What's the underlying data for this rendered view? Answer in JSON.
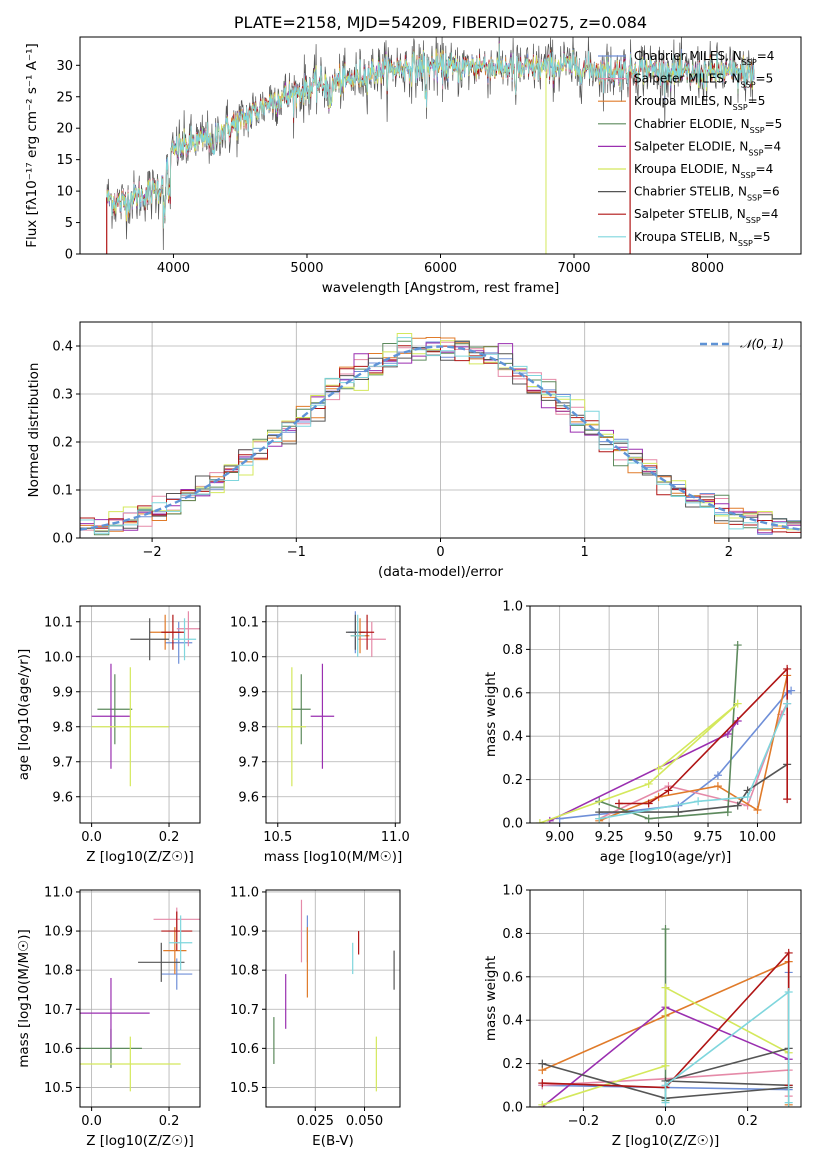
{
  "colors": {
    "Chabrier MILES": "#6f8fd8",
    "Salpeter MILES": "#e58aa8",
    "Kroupa MILES": "#e07b2a",
    "Chabrier ELODIE": "#5d8a5d",
    "Salpeter ELODIE": "#9a2fb0",
    "Kroupa ELODIE": "#d4e85c",
    "Chabrier STELIB": "#555555",
    "Salpeter STELIB": "#b01515",
    "Kroupa STELIB": "#7fd6dd",
    "normal": "#5f93d6"
  },
  "chart_data": [
    {
      "id": "spectrum",
      "type": "line",
      "title": "PLATE=2158, MJD=54209, FIBERID=0275, z=0.084",
      "xlabel": "wavelength [Angstrom, rest frame]",
      "ylabel": "Flux [fλ10⁻¹⁷ erg cm⁻² s⁻¹ A⁻¹]",
      "xlim": [
        3300,
        8700
      ],
      "ylim": [
        0,
        34.5
      ],
      "xticks": [
        4000,
        5000,
        6000,
        7000,
        8000
      ],
      "yticks": [
        0,
        5,
        10,
        15,
        20,
        25,
        30
      ],
      "grid": false,
      "legend_position": "top-right",
      "continuum": [
        [
          3500,
          9
        ],
        [
          3600,
          8
        ],
        [
          3700,
          9
        ],
        [
          3800,
          9.5
        ],
        [
          3900,
          10.5
        ],
        [
          3950,
          14
        ],
        [
          4000,
          16.5
        ],
        [
          4200,
          18
        ],
        [
          4300,
          19
        ],
        [
          4500,
          21
        ],
        [
          4700,
          24
        ],
        [
          4900,
          25.5
        ],
        [
          5100,
          27
        ],
        [
          5300,
          27.5
        ],
        [
          5500,
          29
        ],
        [
          5700,
          29.5
        ],
        [
          5900,
          30
        ],
        [
          6100,
          29.5
        ],
        [
          6300,
          30
        ],
        [
          6500,
          29.5
        ],
        [
          6700,
          29.5
        ],
        [
          6900,
          30
        ],
        [
          7100,
          29.5
        ],
        [
          7300,
          29
        ],
        [
          7500,
          29.5
        ],
        [
          7700,
          29
        ],
        [
          7900,
          28.5
        ],
        [
          8100,
          29
        ],
        [
          8350,
          28.5
        ]
      ],
      "legend": [
        "Chabrier MILES, N_SSP=4",
        "Salpeter MILES, N_SSP=5",
        "Kroupa MILES, N_SSP=5",
        "Chabrier ELODIE, N_SSP=5",
        "Salpeter ELODIE, N_SSP=4",
        "Kroupa ELODIE, N_SSP=4",
        "Chabrier STELIB, N_SSP=6",
        "Salpeter STELIB, N_SSP=4",
        "Kroupa STELIB, N_SSP=5"
      ]
    },
    {
      "id": "residuals",
      "type": "histogram",
      "xlabel": "(data-model)/error",
      "ylabel": "Normed distribution",
      "xlim": [
        -2.5,
        2.5
      ],
      "ylim": [
        0,
        0.45
      ],
      "xticks": [
        -2,
        -1,
        0,
        1,
        2
      ],
      "yticks": [
        0.0,
        0.1,
        0.2,
        0.3,
        0.4
      ],
      "grid": true,
      "legend": [
        "𝒩(0, 1)"
      ],
      "legend_position": "top-right",
      "bin_width": 0.1
    },
    {
      "id": "age_vs_Z",
      "type": "errorbar",
      "xlabel": "Z [log10(Z/Z☉)]",
      "ylabel": "age  [log10(age/yr)]",
      "xlim": [
        -0.03,
        0.28
      ],
      "ylim": [
        9.525,
        10.145
      ],
      "xticks": [
        0.0,
        0.2
      ],
      "yticks": [
        9.6,
        9.7,
        9.8,
        9.9,
        10.0,
        10.1
      ],
      "points": [
        {
          "s": "Chabrier MILES",
          "x": 0.225,
          "y": 10.04,
          "xe": 0.035,
          "ye": 0.06
        },
        {
          "s": "Salpeter MILES",
          "x": 0.25,
          "y": 10.08,
          "xe": 0.03,
          "ye": 0.05
        },
        {
          "s": "Kroupa MILES",
          "x": 0.19,
          "y": 10.07,
          "xe": 0.04,
          "ye": 0.05
        },
        {
          "s": "Chabrier ELODIE",
          "x": 0.06,
          "y": 9.85,
          "xe": 0.045,
          "ye": 0.1
        },
        {
          "s": "Salpeter ELODIE",
          "x": 0.05,
          "y": 9.83,
          "xe": 0.05,
          "ye": 0.15
        },
        {
          "s": "Kroupa ELODIE",
          "x": 0.1,
          "y": 9.8,
          "xe": 0.1,
          "ye": 0.17
        },
        {
          "s": "Chabrier STELIB",
          "x": 0.15,
          "y": 10.05,
          "xe": 0.05,
          "ye": 0.06
        },
        {
          "s": "Salpeter STELIB",
          "x": 0.21,
          "y": 10.07,
          "xe": 0.03,
          "ye": 0.05
        },
        {
          "s": "Kroupa STELIB",
          "x": 0.24,
          "y": 10.05,
          "xe": 0.03,
          "ye": 0.06
        }
      ]
    },
    {
      "id": "age_vs_mass",
      "type": "errorbar",
      "xlabel": "mass [log10(M/M☉)]",
      "ylabel": "",
      "xlim": [
        10.45,
        11.02
      ],
      "ylim": [
        9.525,
        10.145
      ],
      "xticks": [
        10.5,
        11.0
      ],
      "yticks": [
        9.6,
        9.7,
        9.8,
        9.9,
        10.0,
        10.1
      ],
      "points": [
        {
          "s": "Chabrier MILES",
          "x": 10.83,
          "y": 10.07,
          "xe": 0.03,
          "ye": 0.06
        },
        {
          "s": "Salpeter MILES",
          "x": 10.9,
          "y": 10.05,
          "xe": 0.06,
          "ye": 0.05
        },
        {
          "s": "Kroupa MILES",
          "x": 10.85,
          "y": 10.06,
          "xe": 0.04,
          "ye": 0.05
        },
        {
          "s": "Chabrier ELODIE",
          "x": 10.6,
          "y": 9.85,
          "xe": 0.04,
          "ye": 0.1
        },
        {
          "s": "Salpeter ELODIE",
          "x": 10.69,
          "y": 9.83,
          "xe": 0.05,
          "ye": 0.15
        },
        {
          "s": "Kroupa ELODIE",
          "x": 10.56,
          "y": 9.8,
          "xe": 0.06,
          "ye": 0.17
        },
        {
          "s": "Chabrier STELIB",
          "x": 10.83,
          "y": 10.07,
          "xe": 0.04,
          "ye": 0.05
        },
        {
          "s": "Salpeter STELIB",
          "x": 10.88,
          "y": 10.07,
          "xe": 0.03,
          "ye": 0.05
        },
        {
          "s": "Kroupa STELIB",
          "x": 10.84,
          "y": 10.06,
          "xe": 0.03,
          "ye": 0.06
        }
      ]
    },
    {
      "id": "mw_vs_age",
      "type": "line",
      "xlabel": "age  [log10(age/yr)]",
      "ylabel": "mass weight",
      "xlim": [
        8.85,
        10.22
      ],
      "ylim": [
        0,
        1.0
      ],
      "xticks": [
        9.0,
        9.25,
        9.5,
        9.75,
        10.0
      ],
      "yticks": [
        0.0,
        0.2,
        0.4,
        0.6,
        0.8,
        1.0
      ],
      "grid": true,
      "series": [
        {
          "s": "Chabrier MILES",
          "pts": [
            [
              9.0,
              0.02
            ],
            [
              9.6,
              0.08
            ],
            [
              9.8,
              0.22
            ],
            [
              10.15,
              0.6
            ],
            [
              10.17,
              0.61
            ]
          ]
        },
        {
          "s": "Salpeter MILES",
          "pts": [
            [
              9.2,
              0.02
            ],
            [
              9.55,
              0.17
            ],
            [
              9.95,
              0.08
            ],
            [
              10.12,
              0.5
            ],
            [
              10.15,
              0.55
            ]
          ]
        },
        {
          "s": "Kroupa MILES",
          "pts": [
            [
              9.2,
              0.01
            ],
            [
              9.5,
              0.12
            ],
            [
              9.8,
              0.17
            ],
            [
              10.0,
              0.06
            ],
            [
              10.15,
              0.68
            ]
          ]
        },
        {
          "s": "Chabrier ELODIE",
          "pts": [
            [
              9.2,
              0.1
            ],
            [
              9.45,
              0.02
            ],
            [
              9.85,
              0.05
            ],
            [
              9.9,
              0.82
            ]
          ]
        },
        {
          "s": "Salpeter ELODIE",
          "pts": [
            [
              8.95,
              0.01
            ],
            [
              9.85,
              0.41
            ],
            [
              9.9,
              0.47
            ]
          ]
        },
        {
          "s": "Kroupa ELODIE",
          "pts": [
            [
              8.9,
              0.0
            ],
            [
              9.45,
              0.18
            ],
            [
              9.9,
              0.55
            ],
            [
              9.5,
              0.25
            ]
          ]
        },
        {
          "s": "Chabrier STELIB",
          "pts": [
            [
              9.2,
              0.05
            ],
            [
              9.6,
              0.05
            ],
            [
              9.9,
              0.08
            ],
            [
              9.95,
              0.15
            ],
            [
              10.15,
              0.27
            ]
          ]
        },
        {
          "s": "Salpeter STELIB",
          "pts": [
            [
              9.3,
              0.09
            ],
            [
              9.45,
              0.09
            ],
            [
              9.55,
              0.15
            ],
            [
              10.15,
              0.71
            ],
            [
              10.15,
              0.11
            ]
          ]
        },
        {
          "s": "Kroupa STELIB",
          "pts": [
            [
              9.2,
              0.02
            ],
            [
              9.7,
              0.1
            ],
            [
              9.95,
              0.12
            ],
            [
              10.15,
              0.55
            ]
          ]
        }
      ]
    },
    {
      "id": "mass_vs_Z",
      "type": "errorbar",
      "xlabel": "Z [log10(Z/Z☉)]",
      "ylabel": "mass [log10(M/M☉)]",
      "xlim": [
        -0.03,
        0.28
      ],
      "ylim": [
        10.45,
        11.005
      ],
      "xticks": [
        0.0,
        0.2
      ],
      "yticks": [
        10.5,
        10.6,
        10.7,
        10.8,
        10.9,
        11.0
      ],
      "points": [
        {
          "s": "Chabrier MILES",
          "x": 0.22,
          "y": 10.79,
          "xe": 0.04,
          "ye": 0.04
        },
        {
          "s": "Salpeter MILES",
          "x": 0.22,
          "y": 10.93,
          "xe": 0.06,
          "ye": 0.03
        },
        {
          "s": "Kroupa MILES",
          "x": 0.215,
          "y": 10.85,
          "xe": 0.03,
          "ye": 0.06
        },
        {
          "s": "Chabrier ELODIE",
          "x": 0.05,
          "y": 10.6,
          "xe": 0.08,
          "ye": 0.05
        },
        {
          "s": "Salpeter ELODIE",
          "x": 0.05,
          "y": 10.69,
          "xe": 0.1,
          "ye": 0.09
        },
        {
          "s": "Kroupa ELODIE",
          "x": 0.1,
          "y": 10.56,
          "xe": 0.13,
          "ye": 0.07
        },
        {
          "s": "Chabrier STELIB",
          "x": 0.18,
          "y": 10.82,
          "xe": 0.06,
          "ye": 0.05
        },
        {
          "s": "Salpeter STELIB",
          "x": 0.22,
          "y": 10.9,
          "xe": 0.04,
          "ye": 0.05
        },
        {
          "s": "Kroupa STELIB",
          "x": 0.23,
          "y": 10.87,
          "xe": 0.03,
          "ye": 0.07
        }
      ]
    },
    {
      "id": "mass_vs_ebv",
      "type": "errorbar",
      "xlabel": "E(B-V)",
      "ylabel": "",
      "xlim": [
        0.0,
        0.068
      ],
      "ylim": [
        10.45,
        11.005
      ],
      "xticks": [
        0.025,
        0.05
      ],
      "yticks": [
        10.5,
        10.6,
        10.7,
        10.8,
        10.9,
        11.0
      ],
      "points": [
        {
          "s": "Chabrier MILES",
          "x": 0.021,
          "y": 10.88,
          "xe": 0,
          "ye": 0.06
        },
        {
          "s": "Salpeter MILES",
          "x": 0.018,
          "y": 10.9,
          "xe": 0,
          "ye": 0.08
        },
        {
          "s": "Kroupa MILES",
          "x": 0.021,
          "y": 10.82,
          "xe": 0,
          "ye": 0.09
        },
        {
          "s": "Chabrier ELODIE",
          "x": 0.004,
          "y": 10.62,
          "xe": 0,
          "ye": 0.06
        },
        {
          "s": "Salpeter ELODIE",
          "x": 0.01,
          "y": 10.72,
          "xe": 0,
          "ye": 0.07
        },
        {
          "s": "Kroupa ELODIE",
          "x": 0.056,
          "y": 10.56,
          "xe": 0,
          "ye": 0.07
        },
        {
          "s": "Chabrier STELIB",
          "x": 0.065,
          "y": 10.8,
          "xe": 0,
          "ye": 0.05
        },
        {
          "s": "Salpeter STELIB",
          "x": 0.047,
          "y": 10.87,
          "xe": 0,
          "ye": 0.03
        },
        {
          "s": "Kroupa STELIB",
          "x": 0.044,
          "y": 10.83,
          "xe": 0,
          "ye": 0.04
        }
      ]
    },
    {
      "id": "mw_vs_Z",
      "type": "line",
      "xlabel": "Z [log10(Z/Z☉)]",
      "ylabel": "mass weight",
      "xlim": [
        -0.33,
        0.33
      ],
      "ylim": [
        0,
        1.0
      ],
      "xticks": [
        -0.2,
        0.0,
        0.2
      ],
      "yticks": [
        0.0,
        0.2,
        0.4,
        0.6,
        0.8,
        1.0
      ],
      "grid": true,
      "series": [
        {
          "s": "Chabrier MILES",
          "pts": [
            [
              -0.3,
              0.1
            ],
            [
              0.0,
              0.09
            ],
            [
              0.3,
              0.08
            ],
            [
              0.3,
              0.62
            ]
          ]
        },
        {
          "s": "Salpeter MILES",
          "pts": [
            [
              -0.3,
              0.1
            ],
            [
              0.0,
              0.13
            ],
            [
              0.3,
              0.17
            ],
            [
              0.3,
              0.05
            ]
          ]
        },
        {
          "s": "Kroupa MILES",
          "pts": [
            [
              -0.3,
              0.17
            ],
            [
              0.0,
              0.42
            ],
            [
              0.3,
              0.67
            ],
            [
              0.3,
              0.01
            ]
          ]
        },
        {
          "s": "Chabrier ELODIE",
          "pts": [
            [
              0.0,
              0.82
            ],
            [
              0.0,
              0.09
            ],
            [
              0.0,
              0.03
            ]
          ]
        },
        {
          "s": "Salpeter ELODIE",
          "pts": [
            [
              -0.3,
              0.0
            ],
            [
              0.0,
              0.46
            ],
            [
              0.3,
              0.22
            ]
          ]
        },
        {
          "s": "Kroupa ELODIE",
          "pts": [
            [
              -0.3,
              0.01
            ],
            [
              0.0,
              0.19
            ],
            [
              0.0,
              0.55
            ],
            [
              0.3,
              0.25
            ]
          ]
        },
        {
          "s": "Chabrier STELIB",
          "pts": [
            [
              -0.3,
              0.2
            ],
            [
              0.0,
              0.04
            ],
            [
              0.3,
              0.09
            ],
            [
              0.3,
              0.27
            ],
            [
              0.0,
              0.12
            ],
            [
              0.3,
              0.1
            ]
          ]
        },
        {
          "s": "Salpeter STELIB",
          "pts": [
            [
              -0.3,
              0.11
            ],
            [
              0.0,
              0.09
            ],
            [
              0.3,
              0.71
            ],
            [
              0.3,
              0.1
            ]
          ]
        },
        {
          "s": "Kroupa STELIB",
          "pts": [
            [
              0.0,
              0.02
            ],
            [
              0.0,
              0.1
            ],
            [
              0.3,
              0.53
            ],
            [
              0.3,
              0.02
            ]
          ]
        }
      ]
    }
  ]
}
